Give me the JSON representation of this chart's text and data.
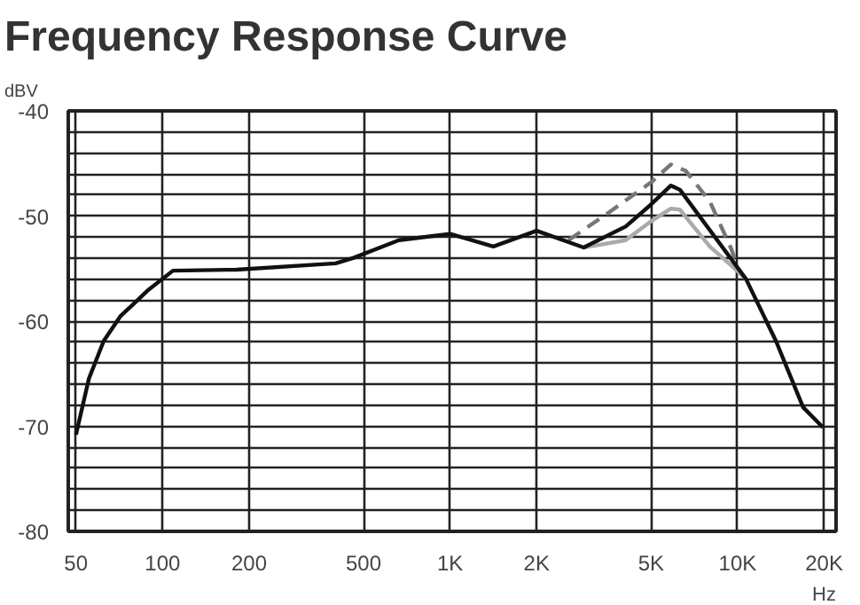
{
  "chart_data": {
    "type": "line",
    "title": "Frequency Response Curve",
    "ylabel": "dBV",
    "xlabel": "Hz",
    "log": "x",
    "grid": true,
    "line_style": "solid",
    "xlim": [
      47,
      22000
    ],
    "ylim": [
      -80,
      -40
    ],
    "xticks": [
      50,
      100,
      200,
      500,
      {
        "value": 1000,
        "label": "1K"
      },
      {
        "value": 2000,
        "label": "2K"
      },
      {
        "value": 5000,
        "label": "5K"
      },
      {
        "value": 10000,
        "label": "10K"
      },
      {
        "value": 20000,
        "label": "20K"
      }
    ],
    "yticks": [
      -80,
      {
        "value": -78,
        "label": null
      },
      {
        "value": -76,
        "label": null
      },
      {
        "value": -74,
        "label": null
      },
      {
        "value": -72,
        "label": null
      },
      -70,
      {
        "value": -68,
        "label": null
      },
      {
        "value": -66,
        "label": null
      },
      {
        "value": -64,
        "label": null
      },
      {
        "value": -62,
        "label": null
      },
      -60,
      {
        "value": -58,
        "label": null
      },
      {
        "value": -56,
        "label": null
      },
      {
        "value": -54,
        "label": null
      },
      {
        "value": -52,
        "label": null
      },
      -50,
      {
        "value": -48,
        "label": null
      },
      {
        "value": -46,
        "label": null
      },
      {
        "value": -44,
        "label": null
      },
      {
        "value": -42,
        "label": null
      },
      -40
    ],
    "series": [
      {
        "color": "#aaaaaa",
        "x": [
          2915,
          4080,
          5000,
          5860,
          6300,
          8000,
          9500,
          10700
        ],
        "values": [
          -53.0,
          -52.3,
          -50.5,
          -49.3,
          -49.4,
          -52.9,
          -54.7,
          -56.0
        ]
      },
      {
        "color": "#777777",
        "line_style": "dashed",
        "x": [
          2580,
          3550,
          5000,
          5860,
          6600,
          8000,
          9500,
          9860
        ],
        "values": [
          -52.3,
          -49.7,
          -46.8,
          -45.1,
          -45.7,
          -48.6,
          -53.1,
          -54.4
        ]
      },
      {
        "color": "#111111",
        "x": [
          50,
          55.4,
          62.4,
          71.5,
          79,
          89.5,
          108.7,
          181,
          400,
          460,
          664,
          874,
          1000,
          1414,
          2000,
          2915,
          4080,
          5000,
          5860,
          6300,
          10700,
          13600,
          16900,
          19800
        ],
        "values": [
          -70.8,
          -65.5,
          -61.9,
          -59.5,
          -58.4,
          -57.0,
          -55.2,
          -55.1,
          -54.5,
          -54.0,
          -52.3,
          -51.9,
          -51.7,
          -52.9,
          -51.4,
          -53.0,
          -51.0,
          -48.9,
          -47.1,
          -47.5,
          -56.0,
          -61.9,
          -68.2,
          -70.1
        ]
      }
    ]
  }
}
